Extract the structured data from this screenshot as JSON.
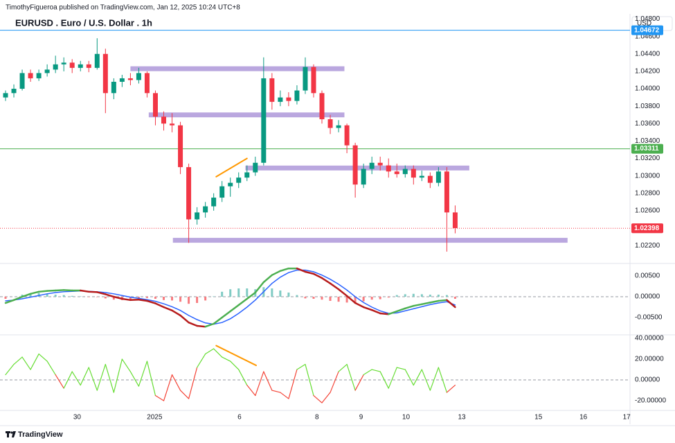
{
  "header": {
    "publisher": "TimothyFigueroa published on TradingView.com, Jan 12, 2025 10:24 UTC+8"
  },
  "footer": "TradingView",
  "chart_data": [
    {
      "type": "candlestick",
      "title": "EURUSD . Euro / U.S. Dollar . 1h",
      "currency": "USD",
      "xlim": [
        0,
        75
      ],
      "xticks": [
        {
          "value": 8.6,
          "label": "30"
        },
        {
          "value": 17.9,
          "label": "2025"
        },
        {
          "value": 28.1,
          "label": "6"
        },
        {
          "value": 37.4,
          "label": "8"
        },
        {
          "value": 42.7,
          "label": "9"
        },
        {
          "value": 48.1,
          "label": "10"
        },
        {
          "value": 54.8,
          "label": "13"
        },
        {
          "value": 64,
          "label": "15"
        },
        {
          "value": 69.4,
          "label": "16"
        },
        {
          "value": 74.6,
          "label": "17"
        }
      ],
      "ylim": [
        1.0201,
        1.0486
      ],
      "yticks": [
        {
          "value": 1.022,
          "label": "1.02200"
        },
        {
          "value": 1.024,
          "label": "1.02400"
        },
        {
          "value": 1.026,
          "label": "1.02600"
        },
        {
          "value": 1.028,
          "label": "1.02800"
        },
        {
          "value": 1.03,
          "label": "1.03000"
        },
        {
          "value": 1.032,
          "label": "1.03200"
        },
        {
          "value": 1.034,
          "label": "1.03400"
        },
        {
          "value": 1.036,
          "label": "1.03600"
        },
        {
          "value": 1.038,
          "label": "1.03800"
        },
        {
          "value": 1.04,
          "label": "1.04000"
        },
        {
          "value": 1.042,
          "label": "1.04200"
        },
        {
          "value": 1.044,
          "label": "1.04400"
        },
        {
          "value": 1.046,
          "label": "1.04600"
        },
        {
          "value": 1.048,
          "label": "1.04800"
        }
      ],
      "up_color": "#089981",
      "down_color": "#f23645",
      "open": [
        1.039,
        1.0395,
        1.04,
        1.0418,
        1.0412,
        1.0418,
        1.0422,
        1.0428,
        1.043,
        1.0424,
        1.0428,
        1.0424,
        1.044,
        1.0395,
        1.0408,
        1.0412,
        1.041,
        1.0418,
        1.0395,
        1.0368,
        1.036,
        1.0358,
        1.031,
        1.025,
        1.0258,
        1.0265,
        1.0275,
        1.0288,
        1.0292,
        1.0298,
        1.0304,
        1.0315,
        1.0412,
        1.0385,
        1.039,
        1.0386,
        1.0398,
        1.0425,
        1.0395,
        1.0365,
        1.0355,
        1.0358,
        1.0335,
        1.029,
        1.0308,
        1.0315,
        1.0312,
        1.0305,
        1.0302,
        1.0308,
        1.0298,
        1.03,
        1.0292,
        1.0305,
        1.0258
      ],
      "high": [
        1.0398,
        1.0405,
        1.0422,
        1.0422,
        1.0422,
        1.0428,
        1.0438,
        1.0436,
        1.0434,
        1.0432,
        1.0432,
        1.0458,
        1.0446,
        1.0412,
        1.0416,
        1.0418,
        1.0424,
        1.042,
        1.0398,
        1.0374,
        1.0372,
        1.0362,
        1.0314,
        1.0264,
        1.027,
        1.028,
        1.0294,
        1.0298,
        1.0304,
        1.0312,
        1.0322,
        1.0436,
        1.0418,
        1.0398,
        1.0396,
        1.0404,
        1.0436,
        1.0428,
        1.0398,
        1.037,
        1.0364,
        1.036,
        1.0338,
        1.0314,
        1.0322,
        1.0322,
        1.032,
        1.0314,
        1.0312,
        1.0312,
        1.0306,
        1.0304,
        1.031,
        1.031,
        1.0266
      ],
      "low": [
        1.0386,
        1.039,
        1.0398,
        1.0408,
        1.0409,
        1.0414,
        1.0418,
        1.042,
        1.0418,
        1.042,
        1.0419,
        1.0422,
        1.0372,
        1.0388,
        1.0402,
        1.0404,
        1.0406,
        1.039,
        1.0358,
        1.0352,
        1.035,
        1.0302,
        1.0223,
        1.0244,
        1.0252,
        1.026,
        1.027,
        1.0276,
        1.0286,
        1.0294,
        1.03,
        1.0312,
        1.0376,
        1.038,
        1.038,
        1.0382,
        1.0394,
        1.039,
        1.036,
        1.0348,
        1.035,
        1.0326,
        1.0275,
        1.0286,
        1.0302,
        1.0306,
        1.0298,
        1.0298,
        1.0298,
        1.029,
        1.0294,
        1.0286,
        1.0288,
        1.0213,
        1.0234
      ],
      "close": [
        1.0395,
        1.04,
        1.0418,
        1.0412,
        1.0418,
        1.0422,
        1.0428,
        1.043,
        1.0424,
        1.0428,
        1.0424,
        1.044,
        1.0395,
        1.0408,
        1.0412,
        1.041,
        1.0418,
        1.0395,
        1.0368,
        1.036,
        1.0358,
        1.031,
        1.025,
        1.0258,
        1.0265,
        1.0275,
        1.0288,
        1.0292,
        1.0298,
        1.0304,
        1.0315,
        1.0412,
        1.0385,
        1.039,
        1.0386,
        1.0398,
        1.0425,
        1.0395,
        1.0365,
        1.0355,
        1.0358,
        1.0335,
        1.029,
        1.0308,
        1.0315,
        1.0312,
        1.0305,
        1.0302,
        1.0308,
        1.0298,
        1.03,
        1.0292,
        1.0305,
        1.0258,
        1.024
      ],
      "levels": [
        {
          "value": 1.04672,
          "color": "#2196f3",
          "style": "solid"
        },
        {
          "value": 1.03311,
          "color": "#4caf50",
          "style": "solid"
        },
        {
          "value": 1.02398,
          "color": "#f23645",
          "style": "dotted"
        }
      ],
      "zone_color": "#b39ddb",
      "zones": [
        {
          "x": [
            15,
            40.7
          ],
          "y": 1.0423
        },
        {
          "x": [
            17.2,
            40.7
          ],
          "y": 1.037
        },
        {
          "x": [
            28.8,
            55.7
          ],
          "y": 1.0309
        },
        {
          "x": [
            20.1,
            67.5
          ],
          "y": 1.0226
        }
      ],
      "trendline": {
        "x": [
          25.3,
          29
        ],
        "y": [
          1.0299,
          1.032
        ],
        "color": "#ff9800"
      }
    },
    {
      "type": "macd",
      "ylim": [
        -0.009,
        0.00767
      ],
      "yticks": [
        {
          "value": 0.005,
          "label": "0.00500"
        },
        {
          "value": 0,
          "label": "0.00000"
        },
        {
          "value": -0.005,
          "label": "-0.00500"
        }
      ],
      "macd": {
        "up_color": "#4caf50",
        "down_color": "#b71c1c",
        "values": [
          -0.0015,
          -0.0008,
          0,
          0.0007,
          0.0012,
          0.0014,
          0.0015,
          0.0016,
          0.0015,
          0.0015,
          0.0012,
          0.0011,
          0.0006,
          0,
          -0.0005,
          -0.0008,
          -0.0007,
          -0.001,
          -0.0016,
          -0.0025,
          -0.0033,
          -0.0045,
          -0.0062,
          -0.007,
          -0.0072,
          -0.0065,
          -0.005,
          -0.0035,
          -0.002,
          -0.0005,
          0.001,
          0.0035,
          0.0052,
          0.0062,
          0.0068,
          0.0068,
          0.006,
          0.0055,
          0.0045,
          0.0032,
          0.0018,
          0.0002,
          -0.0015,
          -0.0025,
          -0.0032,
          -0.004,
          -0.0042,
          -0.0035,
          -0.0028,
          -0.0022,
          -0.0018,
          -0.0014,
          -0.001,
          -0.0008,
          -0.0025
        ]
      },
      "signal": {
        "color": "#2962ff",
        "values": [
          -0.001,
          -0.0008,
          -0.0005,
          -0.0001,
          0.0003,
          0.0007,
          0.001,
          0.0012,
          0.0013,
          0.0014,
          0.0013,
          0.0012,
          0.001,
          0.0007,
          0.0003,
          -0.0001,
          -0.0004,
          -0.0007,
          -0.0011,
          -0.0017,
          -0.0024,
          -0.0033,
          -0.0045,
          -0.0055,
          -0.0063,
          -0.0066,
          -0.0062,
          -0.0053,
          -0.004,
          -0.0025,
          -0.0008,
          0.0012,
          0.0032,
          0.0047,
          0.0058,
          0.0064,
          0.0064,
          0.006,
          0.0052,
          0.0042,
          0.003,
          0.0016,
          0,
          -0.0014,
          -0.0025,
          -0.0034,
          -0.004,
          -0.0039,
          -0.0034,
          -0.0029,
          -0.0024,
          -0.0019,
          -0.0015,
          -0.0012,
          -0.002
        ]
      },
      "histogram": {
        "up_color": "#80cbc4",
        "down_color": "#f77c80",
        "values": [
          -0.0005,
          0,
          0.0005,
          0.0008,
          0.0009,
          0.0007,
          0.0005,
          0.0004,
          0.0002,
          0.0001,
          -0.0001,
          -0.0001,
          -0.0004,
          -0.0007,
          -0.0008,
          -0.0007,
          -0.0003,
          -0.0003,
          -0.0005,
          -0.0008,
          -0.0009,
          -0.0012,
          -0.0017,
          -0.0015,
          -0.0009,
          0.0001,
          0.0012,
          0.0018,
          0.002,
          0.002,
          0.0018,
          0.0023,
          0.002,
          0.0015,
          0.001,
          0.0004,
          -0.0004,
          -0.0005,
          -0.0007,
          -0.001,
          -0.0012,
          -0.0014,
          -0.0015,
          -0.0011,
          -0.0007,
          -0.0006,
          -0.0002,
          0.0004,
          0.0006,
          0.0007,
          0.0006,
          0.0005,
          0.0005,
          0.0004,
          -0.0005
        ]
      },
      "zero_line": true
    },
    {
      "type": "oscillator",
      "ylim": [
        -29.3,
        42.7
      ],
      "yticks": [
        {
          "value": 40,
          "label": "40.00000"
        },
        {
          "value": 20,
          "label": "20.00000"
        },
        {
          "value": 0,
          "label": "0.00000"
        },
        {
          "value": -20,
          "label": "-20.00000"
        }
      ],
      "up_color": "#66dd33",
      "down_color": "#f44336",
      "values": [
        5,
        15,
        22,
        10,
        25,
        18,
        5,
        -8,
        8,
        -5,
        12,
        -10,
        15,
        -12,
        20,
        8,
        -6,
        18,
        -15,
        -20,
        5,
        -10,
        -18,
        12,
        25,
        30,
        22,
        18,
        10,
        -5,
        -15,
        8,
        -10,
        -12,
        -18,
        10,
        15,
        -15,
        -22,
        -12,
        8,
        15,
        -10,
        5,
        10,
        8,
        -8,
        12,
        10,
        -5,
        10,
        -10,
        12,
        -12,
        -5
      ],
      "trendline": {
        "x": [
          25.3,
          30.1
        ],
        "y": [
          33,
          14
        ],
        "color": "#ff9800"
      },
      "zero_line": true
    }
  ]
}
